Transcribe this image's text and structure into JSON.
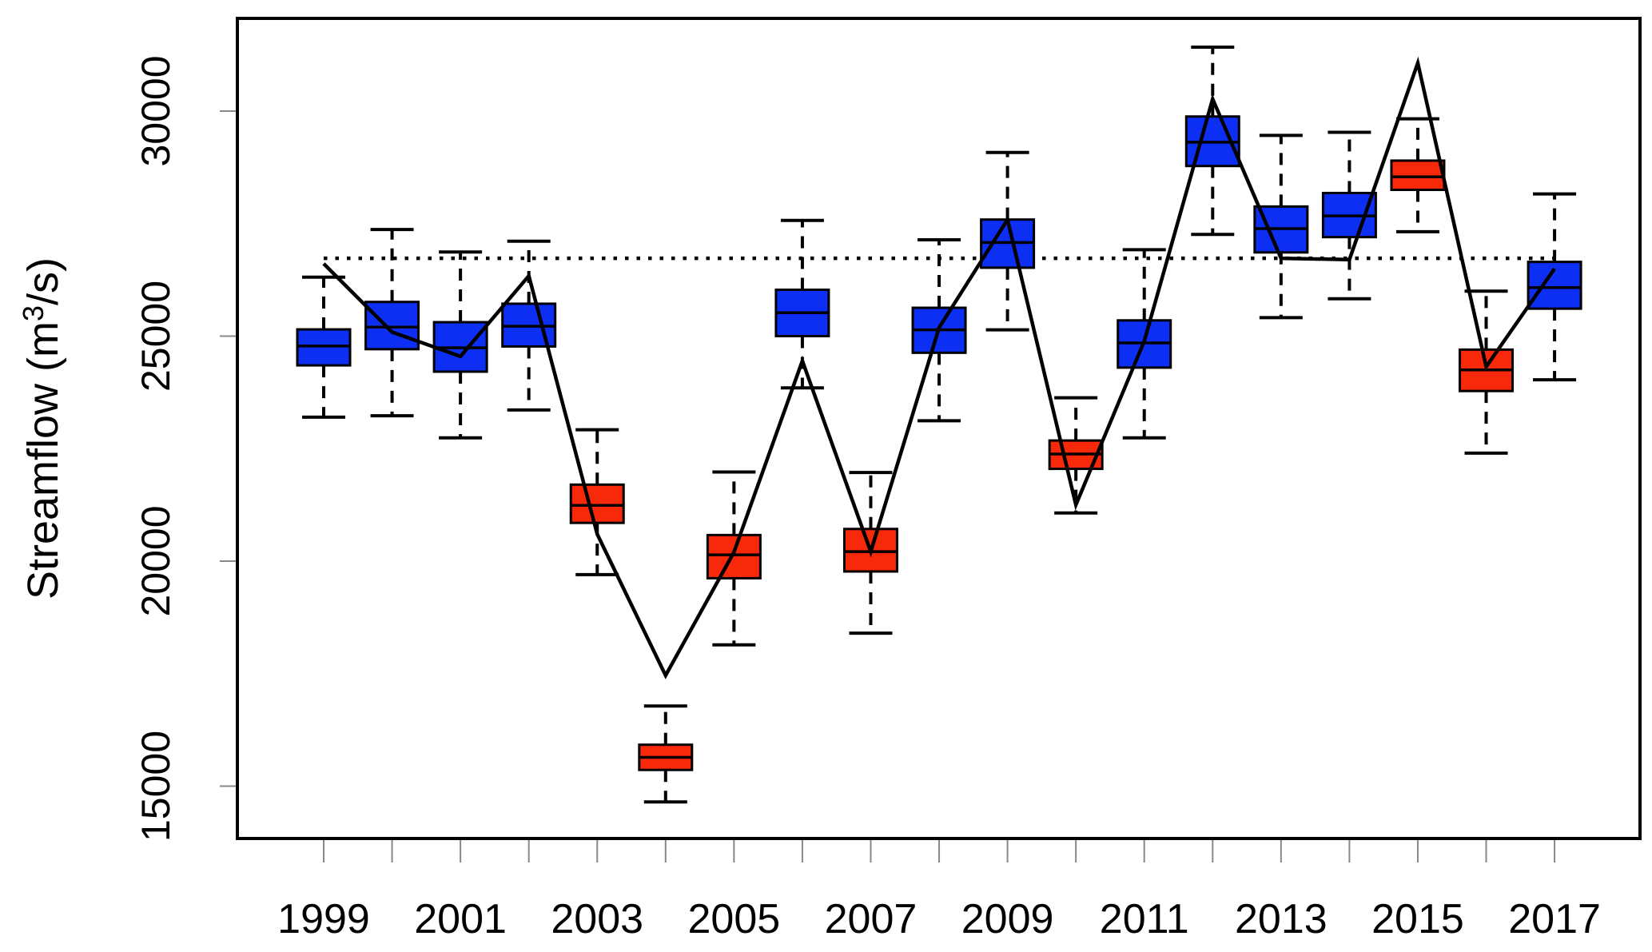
{
  "chart_data": {
    "type": "boxplot-timeseries",
    "title": "",
    "xlabel": "",
    "ylabel_parts": {
      "base": "Streamflow (m",
      "sup": "3",
      "end": "/s)"
    },
    "ylim": [
      13840,
      32060
    ],
    "xlim": [
      1997.75,
      2018.25
    ],
    "grid": "off",
    "legend": "none",
    "y_ticks": [
      15000,
      20000,
      25000,
      30000
    ],
    "y_tick_labels": [
      "15000",
      "20000",
      "25000",
      "30000"
    ],
    "x_ticks": [
      1999,
      2000,
      2001,
      2002,
      2003,
      2004,
      2005,
      2006,
      2007,
      2008,
      2009,
      2010,
      2011,
      2012,
      2013,
      2014,
      2015,
      2016,
      2017
    ],
    "x_tick_labels": [
      "1999",
      "2001",
      "2003",
      "2005",
      "2007",
      "2009",
      "2011",
      "2013",
      "2015",
      "2017"
    ],
    "x_label_years": [
      1999,
      2001,
      2003,
      2005,
      2007,
      2009,
      2011,
      2013,
      2015,
      2017
    ],
    "mean_reference_line": 26730,
    "mean_line_span_years": [
      1999,
      2017
    ],
    "colors": {
      "box_above_mean": "#0C2FF3",
      "box_below_mean": "#F8290B",
      "box_border": "#000000",
      "observed_line": "#000000",
      "mean_dotted_line": "#000000",
      "axis": "#000000",
      "tick_mark": "#888888"
    },
    "series_names": [
      "ensemble-boxplots",
      "observed-line"
    ],
    "series": [
      {
        "year": 1999,
        "color": "blue",
        "whisker_low": 23200,
        "q1": 24350,
        "median": 24780,
        "q3": 25150,
        "whisker_high": 26310,
        "line": 26610
      },
      {
        "year": 2000,
        "color": "blue",
        "whisker_low": 23230,
        "q1": 24710,
        "median": 25200,
        "q3": 25760,
        "whisker_high": 27370,
        "line": 25090
      },
      {
        "year": 2001,
        "color": "blue",
        "whisker_low": 22740,
        "q1": 24210,
        "median": 24740,
        "q3": 25310,
        "whisker_high": 26870,
        "line": 24550
      },
      {
        "year": 2002,
        "color": "blue",
        "whisker_low": 23360,
        "q1": 24770,
        "median": 25220,
        "q3": 25720,
        "whisker_high": 27110,
        "line": 26340
      },
      {
        "year": 2003,
        "color": "red",
        "whisker_low": 19700,
        "q1": 20850,
        "median": 21240,
        "q3": 21700,
        "whisker_high": 22920,
        "line": 20600
      },
      {
        "year": 2004,
        "color": "red",
        "whisker_low": 14650,
        "q1": 15360,
        "median": 15640,
        "q3": 15920,
        "whisker_high": 16780,
        "line": 17460
      },
      {
        "year": 2005,
        "color": "red",
        "whisker_low": 18140,
        "q1": 19620,
        "median": 20140,
        "q3": 20580,
        "whisker_high": 21980,
        "line": 20200
      },
      {
        "year": 2006,
        "color": "blue",
        "whisker_low": 23850,
        "q1": 25000,
        "median": 25520,
        "q3": 26030,
        "whisker_high": 27570,
        "line": 24450
      },
      {
        "year": 2007,
        "color": "red",
        "whisker_low": 18400,
        "q1": 19770,
        "median": 20210,
        "q3": 20715,
        "whisker_high": 21970,
        "line": 20210
      },
      {
        "year": 2008,
        "color": "blue",
        "whisker_low": 23120,
        "q1": 24630,
        "median": 25140,
        "q3": 25630,
        "whisker_high": 27140,
        "line": 25190
      },
      {
        "year": 2009,
        "color": "blue",
        "whisker_low": 25140,
        "q1": 26520,
        "median": 27080,
        "q3": 27590,
        "whisker_high": 29080,
        "line": 27590
      },
      {
        "year": 2010,
        "color": "red",
        "whisker_low": 21070,
        "q1": 22050,
        "median": 22380,
        "q3": 22680,
        "whisker_high": 23630,
        "line": 21250
      },
      {
        "year": 2011,
        "color": "blue",
        "whisker_low": 22740,
        "q1": 24300,
        "median": 24850,
        "q3": 25350,
        "whisker_high": 26920,
        "line": 24890
      },
      {
        "year": 2012,
        "color": "blue",
        "whisker_low": 27260,
        "q1": 28780,
        "median": 29310,
        "q3": 29880,
        "whisker_high": 31420,
        "line": 30270
      },
      {
        "year": 2013,
        "color": "blue",
        "whisker_low": 25410,
        "q1": 26860,
        "median": 27390,
        "q3": 27880,
        "whisker_high": 29460,
        "line": 26730
      },
      {
        "year": 2014,
        "color": "blue",
        "whisker_low": 25830,
        "q1": 27200,
        "median": 27670,
        "q3": 28180,
        "whisker_high": 29530,
        "line": 26700
      },
      {
        "year": 2015,
        "color": "red",
        "whisker_low": 27320,
        "q1": 28250,
        "median": 28540,
        "q3": 28900,
        "whisker_high": 29830,
        "line": 31070
      },
      {
        "year": 2016,
        "color": "red",
        "whisker_low": 22400,
        "q1": 23780,
        "median": 24250,
        "q3": 24700,
        "whisker_high": 26000,
        "line": 24320
      },
      {
        "year": 2017,
        "color": "blue",
        "whisker_low": 24030,
        "q1": 25610,
        "median": 26080,
        "q3": 26650,
        "whisker_high": 28160,
        "line": 26500
      }
    ]
  }
}
